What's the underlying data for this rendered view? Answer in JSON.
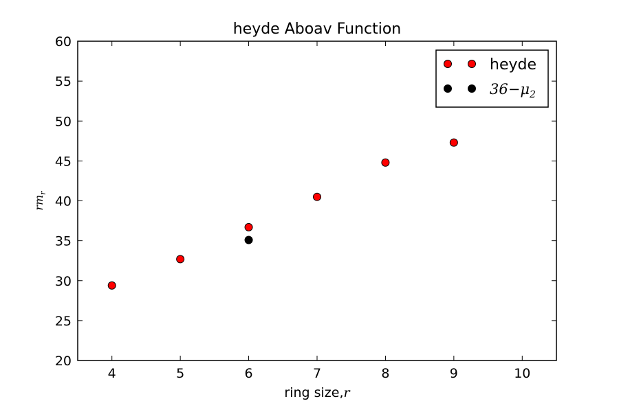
{
  "chart_data": {
    "type": "scatter",
    "title": "heyde Aboav Function",
    "xlabel": "ring size,",
    "xlabel_var": "r",
    "ylabel": "rm",
    "ylabel_sub": "r",
    "xlim": [
      3.5,
      10.5
    ],
    "ylim": [
      20,
      60
    ],
    "xticks": [
      4,
      5,
      6,
      7,
      8,
      9,
      10
    ],
    "yticks": [
      20,
      25,
      30,
      35,
      40,
      45,
      50,
      55,
      60
    ],
    "grid": false,
    "legend_position": "top-right",
    "series": [
      {
        "name": "heyde",
        "color": "#ff0000",
        "x": [
          4,
          5,
          6,
          7,
          8,
          9
        ],
        "y": [
          29.4,
          32.7,
          36.7,
          40.5,
          44.8,
          47.3
        ]
      },
      {
        "name": "36−μ",
        "name_sub": "2",
        "color": "#000000",
        "x": [
          6
        ],
        "y": [
          35.1
        ]
      }
    ]
  }
}
